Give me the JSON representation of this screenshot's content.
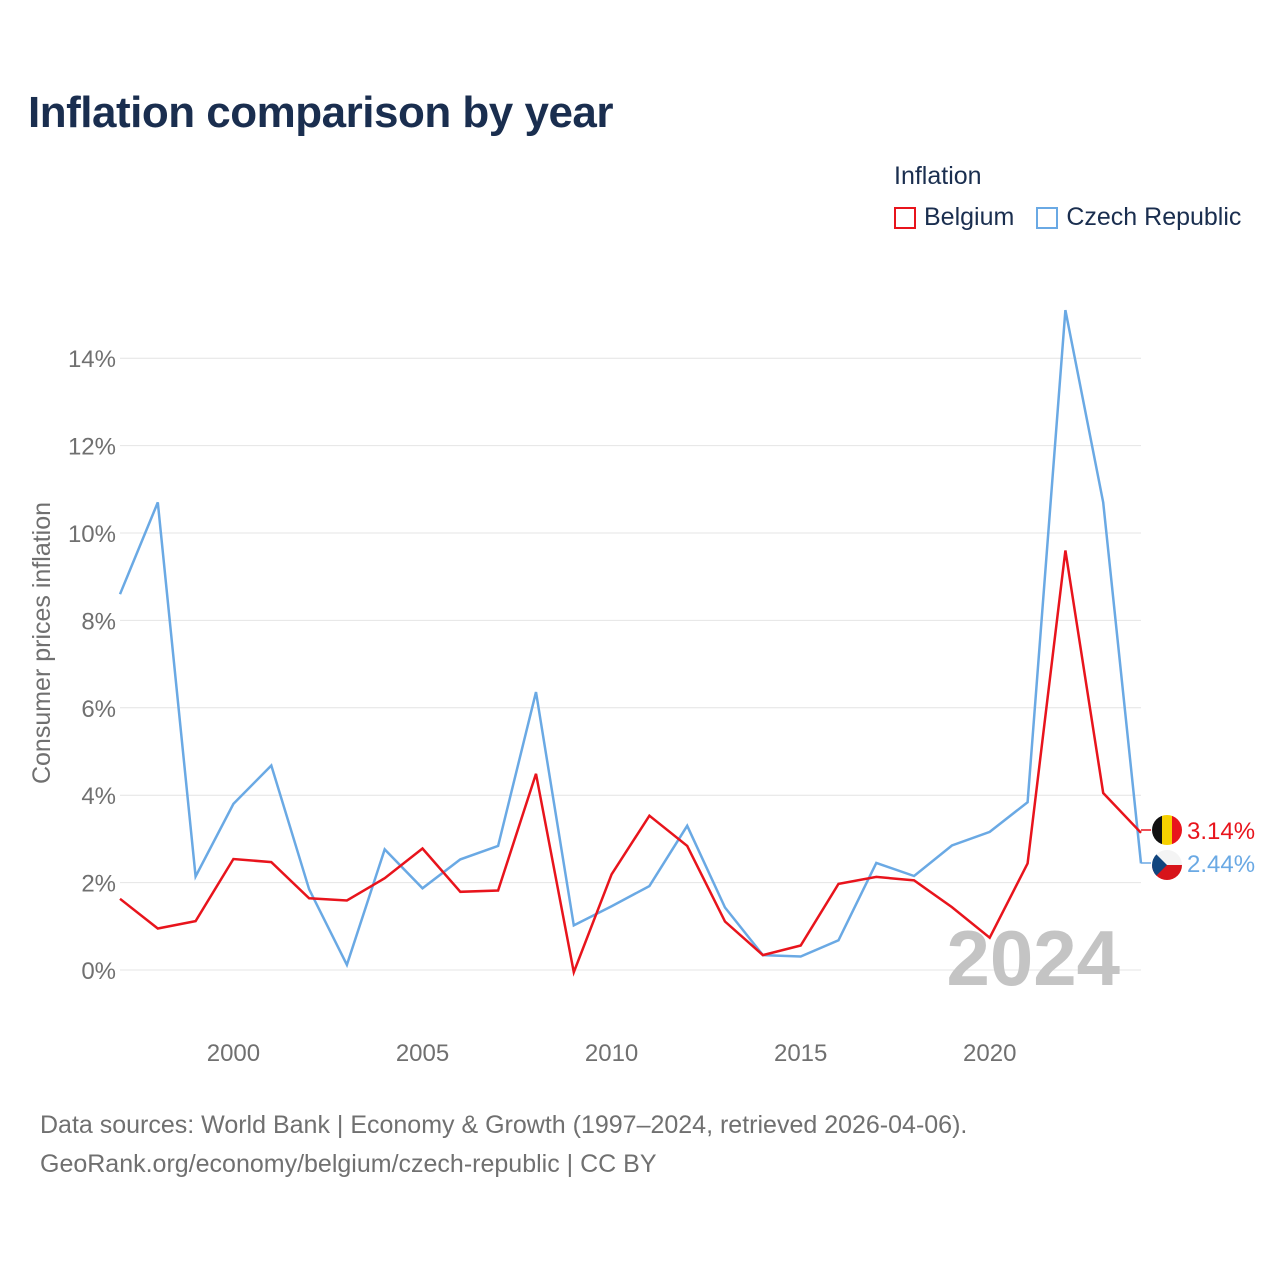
{
  "title": "Inflation comparison by year",
  "legend": {
    "title": "Inflation",
    "items": [
      {
        "label": "Belgium",
        "color": "#e8141c"
      },
      {
        "label": "Czech Republic",
        "color": "#6aa9e4"
      }
    ]
  },
  "year_watermark": "2024",
  "end_labels": {
    "belgium": "3.14%",
    "czech": "2.44%"
  },
  "footer": {
    "line1": "Data sources: World Bank | Economy & Growth (1997–2024, retrieved 2026-04-06).",
    "line2": "GeoRank.org/economy/belgium/czech-republic | CC BY"
  },
  "chart_data": {
    "type": "line",
    "ylabel": "Consumer prices inflation",
    "xlim": [
      1997,
      2024
    ],
    "ylim": [
      -1.0,
      15.5
    ],
    "yticks": [
      0,
      2,
      4,
      6,
      8,
      10,
      12,
      14
    ],
    "ytick_labels": [
      "0%",
      "2%",
      "4%",
      "6%",
      "8%",
      "10%",
      "12%",
      "14%"
    ],
    "xticks": [
      2000,
      2005,
      2010,
      2015,
      2020
    ],
    "xtick_labels": [
      "2000",
      "2005",
      "2010",
      "2015",
      "2020"
    ],
    "x": [
      1997,
      1998,
      1999,
      2000,
      2001,
      2002,
      2003,
      2004,
      2005,
      2006,
      2007,
      2008,
      2009,
      2010,
      2011,
      2012,
      2013,
      2014,
      2015,
      2016,
      2017,
      2018,
      2019,
      2020,
      2021,
      2022,
      2023,
      2024
    ],
    "series": [
      {
        "name": "Belgium",
        "color": "#e8141c",
        "values": [
          1.63,
          0.95,
          1.12,
          2.54,
          2.47,
          1.64,
          1.59,
          2.1,
          2.78,
          1.79,
          1.82,
          4.49,
          -0.05,
          2.19,
          3.53,
          2.84,
          1.11,
          0.34,
          0.56,
          1.97,
          2.13,
          2.05,
          1.44,
          0.74,
          2.44,
          9.6,
          4.05,
          3.14
        ]
      },
      {
        "name": "Czech Republic",
        "color": "#6aa9e4",
        "values": [
          8.6,
          10.7,
          2.14,
          3.8,
          4.68,
          1.85,
          0.12,
          2.76,
          1.87,
          2.53,
          2.84,
          6.36,
          1.02,
          1.46,
          1.92,
          3.3,
          1.43,
          0.34,
          0.31,
          0.68,
          2.45,
          2.15,
          2.85,
          3.16,
          3.84,
          15.1,
          10.7,
          2.44
        ]
      }
    ]
  }
}
